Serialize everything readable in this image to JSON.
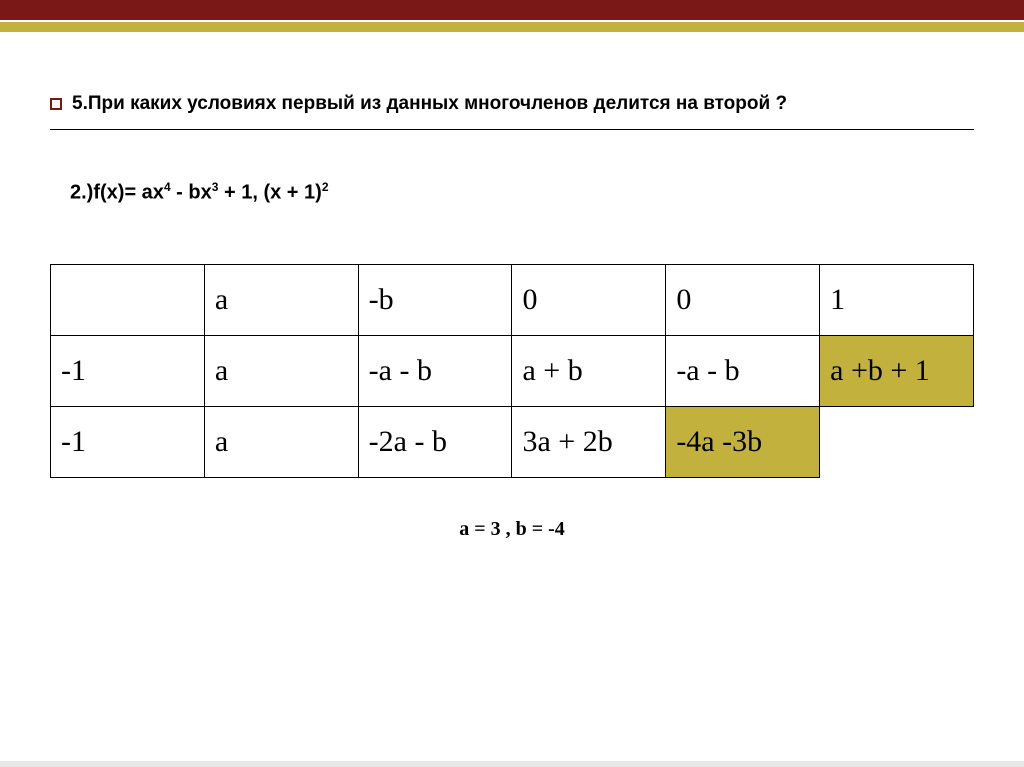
{
  "bars": {
    "top_color": "#7a1818",
    "sub_color": "#c2b23d"
  },
  "title": "5.При каких условиях первый из данных многочленов делится на второй ?",
  "formula_html": "2.)f(x)= ax<sup>4</sup> -  bx<sup>3</sup> + 1,     (x + 1)<sup>2</sup>",
  "table": {
    "type": "table",
    "highlight_color": "#c2b23d",
    "columns": 6,
    "rows": [
      [
        {
          "v": "",
          "hl": false
        },
        {
          "v": "a",
          "hl": false
        },
        {
          "v": "-b",
          "hl": false
        },
        {
          "v": "0",
          "hl": false
        },
        {
          "v": "0",
          "hl": false
        },
        {
          "v": "1",
          "hl": false
        }
      ],
      [
        {
          "v": "-1",
          "hl": false
        },
        {
          "v": "a",
          "hl": false
        },
        {
          "v": "-a - b",
          "hl": false
        },
        {
          "v": "a + b",
          "hl": false
        },
        {
          "v": "-a - b",
          "hl": false
        },
        {
          "v": "a +b + 1",
          "hl": true
        }
      ],
      [
        {
          "v": "-1",
          "hl": false
        },
        {
          "v": "a",
          "hl": false
        },
        {
          "v": "-2a - b",
          "hl": false
        },
        {
          "v": "3a + 2b",
          "hl": false
        },
        {
          "v": "-4a -3b",
          "hl": true
        },
        {
          "v": "",
          "hl": false,
          "empty": true
        }
      ]
    ],
    "cell_fontsize": 30,
    "border_color": "#000000",
    "background_color": "#ffffff"
  },
  "answer": "a = 3 , b = -4"
}
